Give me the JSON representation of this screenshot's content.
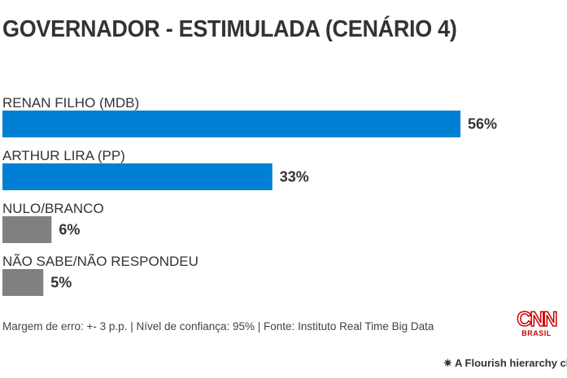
{
  "chart_data": {
    "type": "bar",
    "orientation": "horizontal",
    "title": "GOVERNADOR - ESTIMULADA (CENÁRIO 4)",
    "categories": [
      "RENAN FILHO (MDB)",
      "ARTHUR LIRA (PP)",
      "NULO/BRANCO",
      "NÃO SABE/NÃO RESPONDEU"
    ],
    "values": [
      56,
      33,
      6,
      5
    ],
    "value_labels": [
      "56%",
      "33%",
      "6%",
      "5%"
    ],
    "colors": [
      "#0080d4",
      "#0080d4",
      "#808080",
      "#808080"
    ],
    "xlim": [
      0,
      56
    ],
    "grid": false
  },
  "footer": "Margem de erro: +- 3 p.p. | Nível de confiança: 95% | Fonte: Instituto Real Time Big Data",
  "logo": {
    "name": "CNN",
    "sub": "BRASIL"
  },
  "flourish": "A Flourish hierarchy chart"
}
